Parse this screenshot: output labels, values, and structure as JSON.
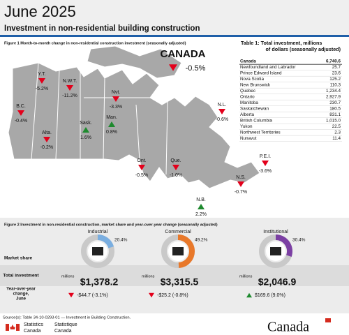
{
  "header": {
    "title": "June 2025",
    "subtitle": "Investment in non-residential building construction"
  },
  "figure1": {
    "title": "Figure 1  Month-to-month change in non-residential construction investment (seasonally adjusted)",
    "canada": {
      "label": "CANADA",
      "value": "-0.5%"
    },
    "regions": [
      {
        "label": "Y.T.",
        "value": "-5.2%"
      },
      {
        "label": "N.W.T.",
        "value": "-11.2%"
      },
      {
        "label": "Nvt.",
        "value": "-3.3%"
      },
      {
        "label": "B.C.",
        "value": "-0.4%"
      },
      {
        "label": "Alta.",
        "value": "-0.2%"
      },
      {
        "label": "Sask.",
        "value": "1.6%"
      },
      {
        "label": "Man.",
        "value": "0.8%"
      },
      {
        "label": "Ont.",
        "value": "-0.5%"
      },
      {
        "label": "Que.",
        "value": "-1.0%"
      },
      {
        "label": "N.L.",
        "value": "-0.6%"
      },
      {
        "label": "P.E.I.",
        "value": "-3.6%"
      },
      {
        "label": "N.S.",
        "value": "-0.7%"
      },
      {
        "label": "N.B.",
        "value": "2.2%"
      }
    ]
  },
  "table1": {
    "title_lines": [
      "Table 1: Total investment, millions",
      "of dollars (seasonally adjusted)"
    ],
    "rows": [
      [
        "Canada",
        "6,740.6"
      ],
      [
        "Newfoundland and Labrador",
        "25.7"
      ],
      [
        "Prince Edward Island",
        "23.6"
      ],
      [
        "Nova Scotia",
        "125.2"
      ],
      [
        "New Brunswick",
        "110.3"
      ],
      [
        "Quebec",
        "1,234.4"
      ],
      [
        "Ontario",
        "2,927.9"
      ],
      [
        "Manitoba",
        "230.7"
      ],
      [
        "Saskatchewan",
        "180.5"
      ],
      [
        "Alberta",
        "831.1"
      ],
      [
        "British Columbia",
        "1,015.0"
      ],
      [
        "Yukon",
        "22.5"
      ],
      [
        "Northwest Territories",
        "2.3"
      ],
      [
        "Nunavut",
        "11.4"
      ]
    ]
  },
  "figure2": {
    "title": "Figure 2 Investment in non-residential construction, market share and year-over-year change (seasonally adjusted)",
    "row_labels": {
      "share": "Market share",
      "total": "Total investment",
      "change": [
        "Year-over-year",
        "change,",
        "June"
      ]
    },
    "sectors": [
      {
        "name": "Industrial",
        "share": 20.4,
        "share_label": "20.4%",
        "color": "#7aaee0",
        "unit": "millions",
        "total": "$1,378.2",
        "change": "-$44.7 (-3.1%)"
      },
      {
        "name": "Commercial",
        "share": 49.2,
        "share_label": "49.2%",
        "color": "#e8782a",
        "unit": "millions",
        "total": "$3,315.5",
        "change": "-$25.2 (-0.8%)"
      },
      {
        "name": "Institutional",
        "share": 30.4,
        "share_label": "30.4%",
        "color": "#7b3fa3",
        "unit": "millions",
        "total": "$2,046.9",
        "change": "$169.6 (9.0%)"
      }
    ]
  },
  "footer": {
    "source": "Source(s): Table 34-10-0293-01 — Investment in Building Construction.",
    "agency_en": [
      "Statistics",
      "Canada"
    ],
    "agency_fr": [
      "Statistique",
      "Canada"
    ],
    "wordmark": "Canada"
  }
}
